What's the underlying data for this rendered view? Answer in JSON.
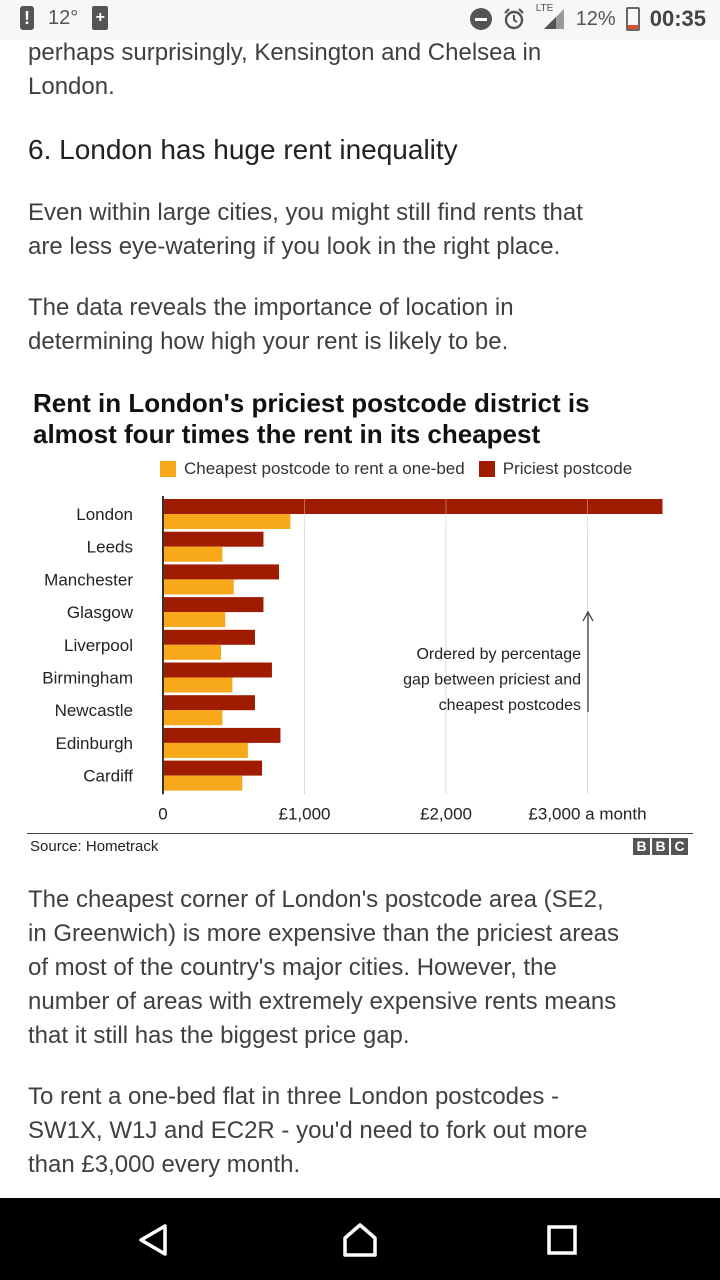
{
  "status_bar": {
    "temperature": "12°",
    "battery_percent": "12%",
    "network": "LTE",
    "time": "00:35",
    "icons": [
      "alert-icon",
      "battery-saver-icon",
      "do-not-disturb-icon",
      "alarm-icon",
      "signal-icon",
      "battery-icon"
    ]
  },
  "article": {
    "intro_fragment": "perhaps surprisingly, Kensington and Chelsea in London.",
    "intro_line1": "perhaps surprisingly, Kensington and Chelsea in",
    "intro_line2": "London.",
    "heading": "6. London has huge rent inequality",
    "para1_line1": "Even within large cities, you might still find rents that",
    "para1_line2": "are less eye-watering if you look in the right place.",
    "para2_line1": "The data reveals the importance of location in",
    "para2_line2": "determining how high your rent is likely to be.",
    "para3_lines": [
      "The cheapest corner of London's postcode area (SE2,",
      "in Greenwich) is more expensive than the priciest areas",
      "of most of the country's major cities. However, the",
      "number of areas with extremely expensive rents means",
      "that it still has the biggest price gap."
    ],
    "para4_lines": [
      "To rent a one-bed flat in three London postcodes -",
      "SW1X, W1J and EC2R - you'd need to fork out more",
      "than £3,000 every month."
    ]
  },
  "chart_data": {
    "type": "bar",
    "title": "Rent in London's priciest postcode district is almost four times the rent in its cheapest",
    "title_line1": "Rent in London's priciest postcode district is",
    "title_line2": "almost four times the rent in its cheapest",
    "orientation": "horizontal",
    "categories": [
      "London",
      "Leeds",
      "Manchester",
      "Glasgow",
      "Liverpool",
      "Birmingham",
      "Newcastle",
      "Edinburgh",
      "Cardiff"
    ],
    "series": [
      {
        "name": "Priciest postcode",
        "color": "#a01c00",
        "values": [
          3530,
          710,
          820,
          710,
          650,
          770,
          650,
          830,
          700
        ]
      },
      {
        "name": "Cheapest postcode to rent a one-bed",
        "color": "#f8a91b",
        "values": [
          900,
          420,
          500,
          440,
          410,
          490,
          420,
          600,
          560
        ]
      }
    ],
    "xlim": [
      0,
      3500
    ],
    "x_ticks": [
      0,
      1000,
      2000,
      3000
    ],
    "x_tick_labels": [
      "0",
      "£1,000",
      "£2,000",
      "£3,000 a month"
    ],
    "annotation": [
      "Ordered by percentage",
      "gap between priciest and",
      "cheapest postcodes"
    ],
    "grid": true,
    "legend_position": "top",
    "source": "Source: Hometrack",
    "logo": "BBC"
  },
  "colors": {
    "priciest": "#a01c00",
    "cheapest": "#f8a91b",
    "text": "#404040",
    "navbar": "#000000"
  },
  "navigation": {
    "icons": [
      "back-icon",
      "home-icon",
      "recents-icon"
    ]
  }
}
